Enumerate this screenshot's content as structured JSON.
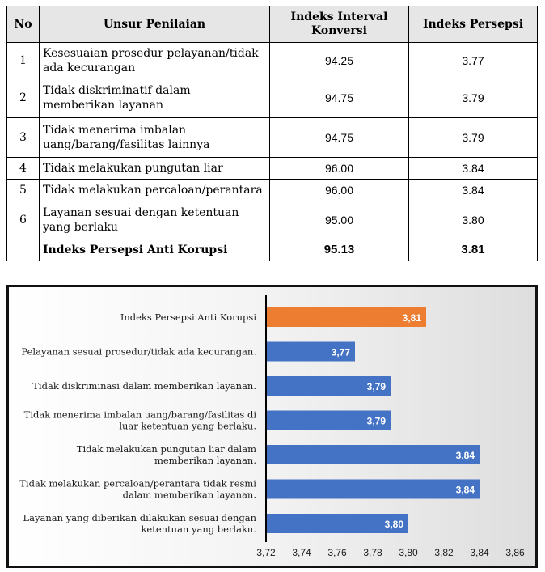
{
  "table": {
    "headers": {
      "no": "No",
      "unsur": "Unsur Penilaian",
      "interval": "Indeks Interval Konversi",
      "persepsi": "Indeks Persepsi"
    },
    "rows": [
      {
        "no": "1",
        "unsur": "Kesesuaian prosedur pelayanan/tidak ada kecurangan",
        "interval": "94.25",
        "persepsi": "3.77"
      },
      {
        "no": "2",
        "unsur": "Tidak diskriminatif dalam memberikan layanan",
        "interval": "94.75",
        "persepsi": "3.79"
      },
      {
        "no": "3",
        "unsur": "Tidak menerima imbalan uang/barang/fasilitas lainnya",
        "interval": "94.75",
        "persepsi": "3.79"
      },
      {
        "no": "4",
        "unsur": "Tidak melakukan pungutan liar",
        "interval": "96.00",
        "persepsi": "3.84"
      },
      {
        "no": "5",
        "unsur": "Tidak melakukan percaloan/perantara",
        "interval": "96.00",
        "persepsi": "3.84"
      },
      {
        "no": "6",
        "unsur": "Layanan sesuai dengan ketentuan yang berlaku",
        "interval": "95.00",
        "persepsi": "3.80"
      }
    ],
    "total": {
      "label": "Indeks Persepsi Anti Korupsi",
      "interval": "95.13",
      "persepsi": "3.81"
    }
  },
  "chart_data": {
    "type": "bar",
    "orientation": "horizontal",
    "categories": [
      "Indeks Persepsi Anti Korupsi",
      "Pelayanan sesuai prosedur/tidak ada kecurangan.",
      "Tidak diskriminasi dalam memberikan layanan.",
      "Tidak menerima imbalan uang/barang/fasilitas di luar ketentuan yang berlaku.",
      "Tidak melakukan pungutan liar dalam memberikan layanan.",
      "Tidak melakukan percaloan/perantara tidak resmi dalam memberikan layanan.",
      "Layanan yang diberikan dilakukan sesuai dengan ketentuan yang berlaku."
    ],
    "category_lines": [
      [
        "Indeks Persepsi Anti Korupsi"
      ],
      [
        "Pelayanan sesuai prosedur/tidak ada kecurangan."
      ],
      [
        "Tidak diskriminasi dalam memberikan layanan."
      ],
      [
        "Tidak menerima imbalan uang/barang/fasilitas di",
        "luar ketentuan yang berlaku."
      ],
      [
        "Tidak melakukan pungutan liar dalam",
        "memberikan layanan."
      ],
      [
        "Tidak melakukan percaloan/perantara tidak resmi",
        "dalam memberikan layanan."
      ],
      [
        "Layanan yang diberikan dilakukan sesuai dengan",
        "ketentuan yang berlaku."
      ]
    ],
    "values": [
      3.81,
      3.77,
      3.79,
      3.79,
      3.84,
      3.84,
      3.8
    ],
    "value_labels": [
      "3,81",
      "3,77",
      "3,79",
      "3,79",
      "3,84",
      "3,84",
      "3,80"
    ],
    "bar_colors": [
      "#ed7d31",
      "#4472c4",
      "#4472c4",
      "#4472c4",
      "#4472c4",
      "#4472c4",
      "#4472c4"
    ],
    "xlim": [
      3.72,
      3.86
    ],
    "xticks": [
      3.72,
      3.74,
      3.76,
      3.78,
      3.8,
      3.82,
      3.84,
      3.86
    ],
    "xtick_labels": [
      "3,72",
      "3,74",
      "3,76",
      "3,78",
      "3,80",
      "3,82",
      "3,84",
      "3,86"
    ],
    "grid": false,
    "legend": "none"
  }
}
